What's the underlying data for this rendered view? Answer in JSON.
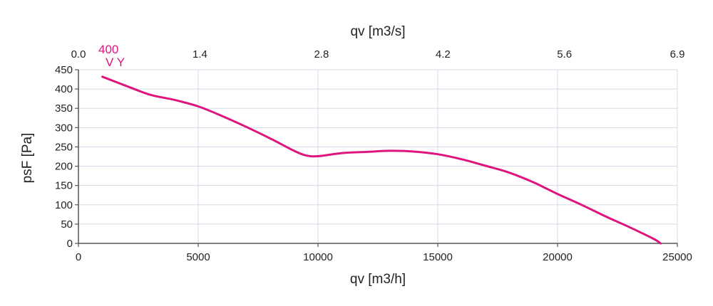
{
  "chart_data": {
    "type": "line",
    "xlabel": "qv [m3/h]",
    "x2label": "qv [m3/s]",
    "ylabel": "psF [Pa]",
    "xlim": [
      0,
      25000
    ],
    "x2lim": [
      0,
      6.9
    ],
    "ylim": [
      0,
      450
    ],
    "x_ticks": [
      0,
      5000,
      10000,
      15000,
      20000,
      25000
    ],
    "x_tick_labels": [
      "0",
      "5000",
      "10000",
      "15000",
      "20000",
      "25000"
    ],
    "x2_ticks": [
      0,
      1.4,
      2.8,
      4.2,
      5.6,
      6.9
    ],
    "x2_tick_labels": [
      "0.0",
      "1.4",
      "2.8",
      "4.2",
      "5.6",
      "6.9"
    ],
    "y_ticks": [
      0,
      50,
      100,
      150,
      200,
      250,
      300,
      350,
      400,
      450
    ],
    "y_tick_labels": [
      "0",
      "50",
      "100",
      "150",
      "200",
      "250",
      "300",
      "350",
      "400",
      "450"
    ],
    "grid": true,
    "series": [
      {
        "label_lines": [
          "400",
          "V Y"
        ],
        "color": "#e0147f",
        "x": [
          1000,
          2000,
          3000,
          4000,
          5000,
          6000,
          7000,
          8000,
          9000,
          9500,
          10000,
          11000,
          12000,
          13000,
          14000,
          15000,
          16000,
          17000,
          18000,
          19000,
          20000,
          21000,
          22000,
          23000,
          24000,
          24300
        ],
        "y": [
          432,
          408,
          385,
          372,
          355,
          330,
          302,
          272,
          240,
          228,
          226,
          234,
          237,
          240,
          238,
          231,
          218,
          201,
          183,
          158,
          128,
          100,
          70,
          42,
          12,
          0
        ]
      }
    ]
  }
}
